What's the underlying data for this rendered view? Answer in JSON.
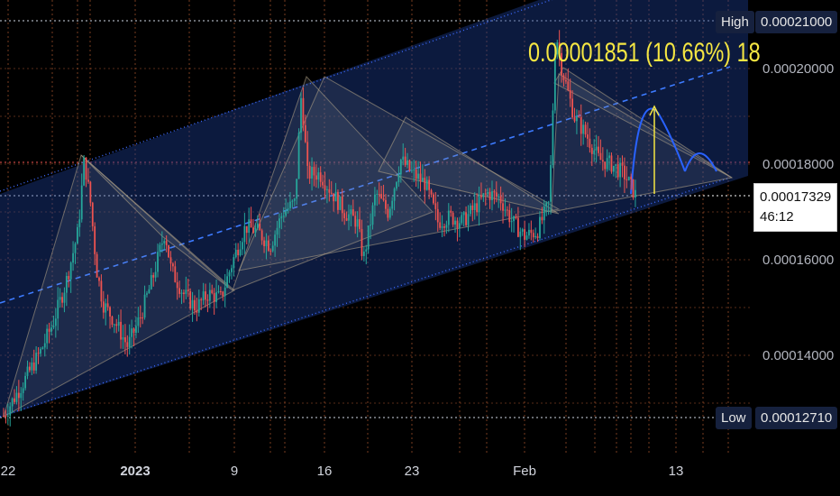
{
  "chart_data": {
    "type": "candlestick",
    "title": "",
    "x_tick_labels": [
      "22",
      "2023",
      "9",
      "16",
      "23",
      "Feb",
      "13"
    ],
    "y_tick_labels": [
      "0.00020000",
      "0.00018000",
      "0.00016000",
      "0.00014000"
    ],
    "ylim": [
      0.0001195,
      0.0002145
    ],
    "high": {
      "label": "High",
      "value": "0.00021000"
    },
    "low": {
      "label": "Low",
      "value": "0.00012710"
    },
    "last_price": {
      "value": "0.00017329",
      "countdown": "46:12"
    },
    "measure_text": "0.00001851 (10.66%) 18",
    "price_series": [
      {
        "t": 0,
        "p": 0.0001275
      },
      {
        "t": 3,
        "p": 0.000134
      },
      {
        "t": 6,
        "p": 0.000141
      },
      {
        "t": 8,
        "p": 0.000147
      },
      {
        "t": 10,
        "p": 0.000155
      },
      {
        "t": 12,
        "p": 0.000166
      },
      {
        "t": 13,
        "p": 0.000181
      },
      {
        "t": 14,
        "p": 0.000172
      },
      {
        "t": 15,
        "p": 0.000158
      },
      {
        "t": 16,
        "p": 0.000151
      },
      {
        "t": 18,
        "p": 0.000147
      },
      {
        "t": 20,
        "p": 0.000142
      },
      {
        "t": 22,
        "p": 0.000148
      },
      {
        "t": 24,
        "p": 0.000156
      },
      {
        "t": 26,
        "p": 0.000166
      },
      {
        "t": 27,
        "p": 0.000158
      },
      {
        "t": 29,
        "p": 0.000153
      },
      {
        "t": 31,
        "p": 0.00015
      },
      {
        "t": 33,
        "p": 0.000153
      },
      {
        "t": 35,
        "p": 0.000152
      },
      {
        "t": 37,
        "p": 0.00016
      },
      {
        "t": 39,
        "p": 0.000167
      },
      {
        "t": 41,
        "p": 0.000166
      },
      {
        "t": 43,
        "p": 0.000163
      },
      {
        "t": 45,
        "p": 0.00017
      },
      {
        "t": 47,
        "p": 0.000172
      },
      {
        "t": 48,
        "p": 0.000195
      },
      {
        "t": 49,
        "p": 0.000178
      },
      {
        "t": 51,
        "p": 0.000178
      },
      {
        "t": 53,
        "p": 0.000174
      },
      {
        "t": 55,
        "p": 0.00017
      },
      {
        "t": 57,
        "p": 0.000168
      },
      {
        "t": 58,
        "p": 0.00016
      },
      {
        "t": 60,
        "p": 0.000174
      },
      {
        "t": 62,
        "p": 0.00017
      },
      {
        "t": 64,
        "p": 0.000181
      },
      {
        "t": 66,
        "p": 0.000178
      },
      {
        "t": 68,
        "p": 0.000176
      },
      {
        "t": 70,
        "p": 0.000168
      },
      {
        "t": 72,
        "p": 0.000169
      },
      {
        "t": 74,
        "p": 0.000168
      },
      {
        "t": 76,
        "p": 0.000171
      },
      {
        "t": 78,
        "p": 0.000174
      },
      {
        "t": 80,
        "p": 0.000173
      },
      {
        "t": 82,
        "p": 0.000168
      },
      {
        "t": 84,
        "p": 0.000165
      },
      {
        "t": 86,
        "p": 0.000166
      },
      {
        "t": 88,
        "p": 0.000172
      },
      {
        "t": 89,
        "p": 0.000208
      },
      {
        "t": 90,
        "p": 0.0002
      },
      {
        "t": 92,
        "p": 0.00019
      },
      {
        "t": 94,
        "p": 0.000186
      },
      {
        "t": 96,
        "p": 0.000181
      },
      {
        "t": 98,
        "p": 0.00018
      },
      {
        "t": 100,
        "p": 0.000178
      },
      {
        "t": 102,
        "p": 0.0001733
      }
    ]
  }
}
